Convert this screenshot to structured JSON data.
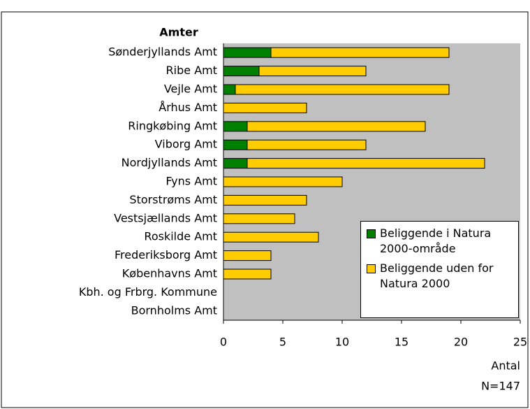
{
  "chart_data": {
    "type": "stacked_barh",
    "y_axis_title": "Amter",
    "x_axis_title": "Antal",
    "note": "N=147",
    "categories": [
      "Sønderjyllands Amt",
      "Ribe Amt",
      "Vejle Amt",
      "Århus Amt",
      "Ringkøbing Amt",
      "Viborg Amt",
      "Nordjyllands Amt",
      "Fyns Amt",
      "Storstrøms Amt",
      "Vestsjællands Amt",
      "Roskilde Amt",
      "Frederiksborg Amt",
      "Københavns Amt",
      "Kbh. og Frbrg. Kommune",
      "Bornholms Amt"
    ],
    "series": [
      {
        "name": "Beliggende i Natura 2000-område",
        "color": "#008000",
        "values": [
          4,
          3,
          1,
          0,
          2,
          2,
          2,
          0,
          0,
          0,
          0,
          0,
          0,
          0,
          0
        ]
      },
      {
        "name": "Beliggende uden for Natura 2000",
        "color": "#ffcc00",
        "values": [
          15,
          9,
          18,
          7,
          15,
          10,
          20,
          10,
          7,
          6,
          8,
          4,
          4,
          0,
          0
        ]
      }
    ],
    "xlim": [
      0,
      25
    ],
    "xticks": [
      0,
      5,
      10,
      15,
      20,
      25
    ],
    "plot_background": "#c0c0c0"
  }
}
